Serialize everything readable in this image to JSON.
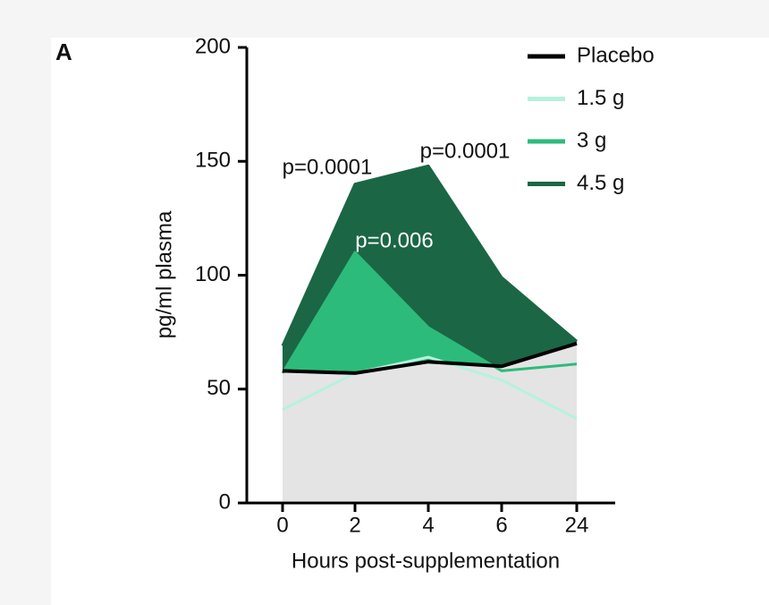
{
  "chart_data": {
    "type": "area",
    "panel_label": "A",
    "x_label": "Hours post-supplementation",
    "y_label": "pg/ml plasma",
    "categories": [
      "0",
      "2",
      "4",
      "6",
      "24"
    ],
    "ylim": [
      0,
      200
    ],
    "yticks": [
      0,
      50,
      100,
      150,
      200
    ],
    "series": [
      {
        "name": "Placebo",
        "color": "#000000",
        "area_color": "#e4e4e4",
        "values": [
          58,
          57,
          62,
          60,
          70
        ]
      },
      {
        "name": "1.5 g",
        "color": "#b5f2de",
        "values": [
          41,
          57,
          64,
          54,
          37
        ]
      },
      {
        "name": "3 g",
        "color": "#2dbb7b",
        "values": [
          57,
          110,
          77,
          58,
          61
        ]
      },
      {
        "name": "4.5 g",
        "color": "#1b6645",
        "values": [
          69,
          140,
          148,
          99,
          71
        ]
      }
    ],
    "annotations": [
      "p=0.0001",
      "p=0.0001",
      "p=0.006"
    ]
  }
}
